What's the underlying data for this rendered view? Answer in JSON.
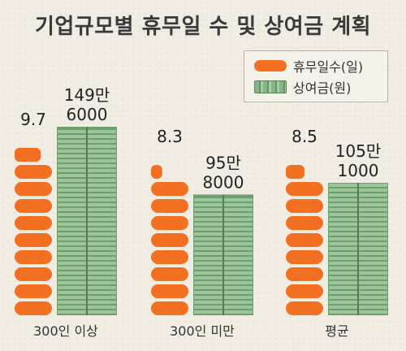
{
  "title": "기업규모별 휴무일 수 및 상여금 계획",
  "legend": {
    "days": "휴무일수(일)",
    "bonus": "상여금(원)"
  },
  "colors": {
    "days": "#f36f21",
    "bonus": "#7aa97c",
    "background": "#f2ede3"
  },
  "chart_data": {
    "type": "bar",
    "title": "기업규모별 휴무일 수 및 상여금 계획",
    "categories": [
      "300인 이상",
      "300인 미만",
      "평균"
    ],
    "series": [
      {
        "name": "휴무일수(일)",
        "values": [
          9.7,
          8.3,
          8.5
        ],
        "labels": [
          "9.7",
          "8.3",
          "8.5"
        ]
      },
      {
        "name": "상여금(원)",
        "values": [
          1496000,
          958000,
          1051000
        ],
        "labels": [
          [
            "149만",
            "6000"
          ],
          [
            "95만",
            "8000"
          ],
          [
            "105만",
            "1000"
          ]
        ]
      }
    ],
    "xlabel": "",
    "ylabel": "",
    "grid": false,
    "legend_position": "top-right"
  }
}
